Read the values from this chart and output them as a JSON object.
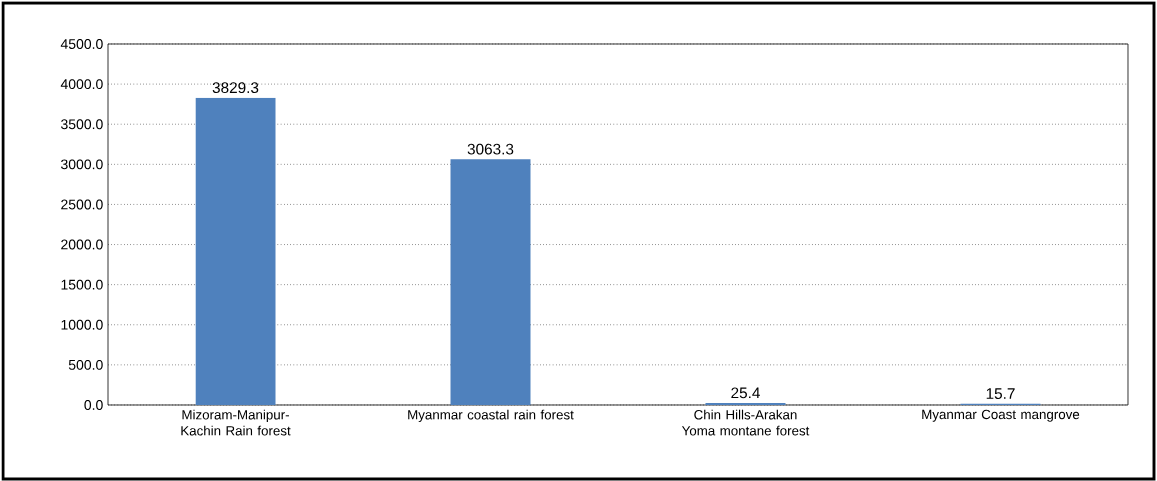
{
  "chart_data": {
    "type": "bar",
    "categories": [
      "Mizoram-Manipur- Kachin Rain forest",
      "Myanmar coastal rain forest",
      "Chin Hills-Arakan Yoma montane forest",
      "Myanmar Coast mangrove"
    ],
    "values": [
      3829.3,
      3063.3,
      25.4,
      15.7
    ],
    "color": "#4f81bd",
    "ylim": [
      0,
      4500
    ],
    "yticks": [
      {
        "value": 0,
        "label": "0.0"
      },
      {
        "value": 500,
        "label": "500.0"
      },
      {
        "value": 1000,
        "label": "1000.0"
      },
      {
        "value": 1500,
        "label": "1500.0"
      },
      {
        "value": 2000,
        "label": "2000.0"
      },
      {
        "value": 2500,
        "label": "2500.0"
      },
      {
        "value": 3000,
        "label": "3000.0"
      },
      {
        "value": 3500,
        "label": "3500.0"
      },
      {
        "value": 4000,
        "label": "4000.0"
      },
      {
        "value": 4500,
        "label": "4500.0"
      }
    ],
    "grid": "y",
    "data_labels": true
  }
}
